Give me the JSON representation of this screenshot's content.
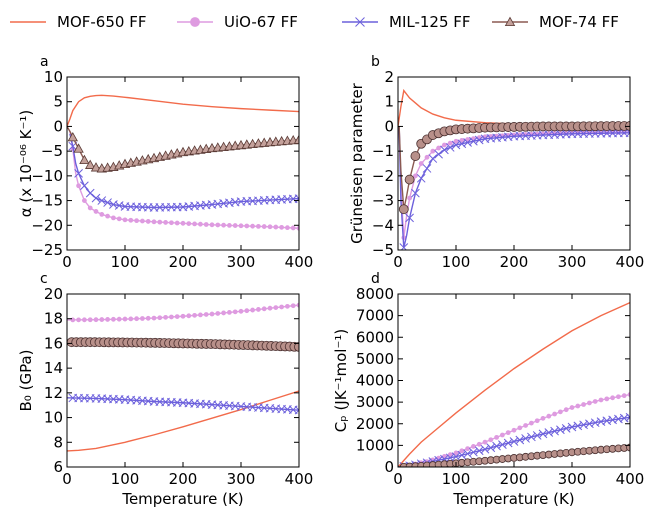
{
  "legend": [
    {
      "label": "MOF-650 FF",
      "color": "#f26b4b",
      "marker": "none"
    },
    {
      "label": "UiO-67 FF",
      "color": "#de9be0",
      "marker": "circle",
      "markerFill": "#de9be0",
      "markerStroke": "#de9be0"
    },
    {
      "label": "MIL-125 FF",
      "color": "#6c60dc",
      "marker": "x",
      "markerFill": "none",
      "markerStroke": "#6c60dc"
    },
    {
      "label": "MOF-74 FF",
      "color": "#8b5a52",
      "marker": "triangle",
      "markerFill": "#c4a19b",
      "markerStroke": "#5a3a35"
    }
  ],
  "chart_data": [
    {
      "panel": "a",
      "type": "line",
      "xlabel": "",
      "ylabel": "α (x 10⁻⁰⁶ K⁻¹)",
      "xlim": [
        0,
        400
      ],
      "ylim": [
        -25,
        10
      ],
      "xticks": [
        0,
        100,
        200,
        300,
        400
      ],
      "yticks": [
        -25,
        -20,
        -15,
        -10,
        -5,
        0,
        5,
        10
      ],
      "series": [
        {
          "name": "MOF-650 FF",
          "marker": "none",
          "x": [
            0,
            5,
            10,
            20,
            30,
            40,
            50,
            60,
            80,
            100,
            150,
            200,
            250,
            300,
            350,
            400
          ],
          "y": [
            0,
            1.5,
            3.2,
            5.0,
            5.8,
            6.1,
            6.25,
            6.3,
            6.15,
            5.9,
            5.2,
            4.5,
            4.0,
            3.6,
            3.3,
            3.0
          ]
        },
        {
          "name": "UiO-67 FF",
          "marker": "circle",
          "x": [
            5,
            10,
            15,
            20,
            30,
            40,
            50,
            60,
            80,
            100,
            150,
            200,
            250,
            300,
            350,
            400
          ],
          "y": [
            -1.0,
            -4.5,
            -9.5,
            -12.0,
            -15.0,
            -16.5,
            -17.2,
            -17.8,
            -18.5,
            -18.9,
            -19.3,
            -19.6,
            -19.9,
            -20.1,
            -20.3,
            -20.6
          ]
        },
        {
          "name": "MIL-125 FF",
          "marker": "x",
          "x": [
            5,
            10,
            15,
            20,
            30,
            40,
            50,
            60,
            80,
            100,
            150,
            200,
            250,
            300,
            350,
            400
          ],
          "y": [
            -1.5,
            -4.0,
            -7.5,
            -9.5,
            -12.0,
            -13.5,
            -14.5,
            -15.0,
            -15.8,
            -16.2,
            -16.4,
            -16.3,
            -15.8,
            -15.2,
            -14.9,
            -14.6
          ]
        },
        {
          "name": "MOF-74 FF",
          "marker": "triangle",
          "x": [
            0,
            5,
            10,
            20,
            30,
            40,
            50,
            60,
            80,
            100,
            150,
            200,
            250,
            300,
            350,
            400
          ],
          "y": [
            0,
            -1.0,
            -2.2,
            -4.5,
            -6.8,
            -7.8,
            -8.3,
            -8.5,
            -8.2,
            -7.6,
            -6.4,
            -5.2,
            -4.4,
            -3.8,
            -3.2,
            -2.7
          ]
        }
      ]
    },
    {
      "panel": "b",
      "type": "line",
      "xlabel": "",
      "ylabel": "Grüneisen parameter",
      "xlim": [
        0,
        400
      ],
      "ylim": [
        -5,
        2
      ],
      "xticks": [
        0,
        100,
        200,
        300,
        400
      ],
      "yticks": [
        -5,
        -4,
        -3,
        -2,
        -1,
        0,
        1,
        2
      ],
      "series": [
        {
          "name": "MOF-650 FF",
          "marker": "none",
          "x": [
            0,
            5,
            10,
            15,
            20,
            30,
            40,
            60,
            80,
            100,
            150,
            200,
            250,
            300,
            350,
            400
          ],
          "y": [
            0,
            0.8,
            1.45,
            1.3,
            1.15,
            0.95,
            0.75,
            0.5,
            0.35,
            0.25,
            0.15,
            0.1,
            0.07,
            0.05,
            0.03,
            0.02
          ]
        },
        {
          "name": "UiO-67 FF",
          "marker": "circle",
          "x": [
            2,
            5,
            10,
            15,
            20,
            30,
            40,
            60,
            80,
            100,
            150,
            200,
            250,
            300,
            350,
            400
          ],
          "y": [
            0,
            -2.5,
            -4.5,
            -3.6,
            -2.9,
            -2.0,
            -1.5,
            -1.0,
            -0.75,
            -0.6,
            -0.42,
            -0.35,
            -0.3,
            -0.27,
            -0.25,
            -0.23
          ]
        },
        {
          "name": "MIL-125 FF",
          "marker": "x",
          "x": [
            2,
            5,
            10,
            15,
            20,
            30,
            40,
            60,
            80,
            100,
            150,
            200,
            250,
            300,
            350,
            400
          ],
          "y": [
            0,
            -3.0,
            -4.9,
            -4.4,
            -3.7,
            -2.7,
            -2.1,
            -1.3,
            -0.95,
            -0.75,
            -0.5,
            -0.4,
            -0.35,
            -0.3,
            -0.28,
            -0.26
          ]
        },
        {
          "name": "MOF-74 FF",
          "marker": "circle",
          "x": [
            2,
            5,
            10,
            15,
            20,
            30,
            40,
            60,
            80,
            100,
            150,
            200,
            250,
            300,
            350,
            400
          ],
          "y": [
            0,
            -1.8,
            -3.35,
            -2.8,
            -2.15,
            -1.2,
            -0.7,
            -0.35,
            -0.2,
            -0.12,
            -0.05,
            -0.02,
            0,
            0,
            0.01,
            0.02
          ]
        }
      ]
    },
    {
      "panel": "c",
      "type": "line",
      "xlabel": "Temperature (K)",
      "ylabel": "B₀ (GPa)",
      "xlim": [
        0,
        400
      ],
      "ylim": [
        6,
        20
      ],
      "xticks": [
        0,
        100,
        200,
        300,
        400
      ],
      "yticks": [
        6,
        8,
        10,
        12,
        14,
        16,
        18,
        20
      ],
      "series": [
        {
          "name": "MOF-650 FF",
          "marker": "none",
          "x": [
            0,
            20,
            50,
            100,
            150,
            200,
            250,
            300,
            350,
            400
          ],
          "y": [
            7.3,
            7.35,
            7.5,
            8.0,
            8.6,
            9.25,
            9.95,
            10.65,
            11.4,
            12.15
          ]
        },
        {
          "name": "UiO-67 FF",
          "marker": "circle",
          "x": [
            0,
            50,
            100,
            150,
            200,
            250,
            300,
            350,
            400
          ],
          "y": [
            17.9,
            17.92,
            17.97,
            18.05,
            18.2,
            18.38,
            18.6,
            18.85,
            19.1
          ]
        },
        {
          "name": "MIL-125 FF",
          "marker": "x",
          "x": [
            0,
            50,
            100,
            150,
            200,
            250,
            300,
            350,
            400
          ],
          "y": [
            11.6,
            11.55,
            11.45,
            11.3,
            11.2,
            11.05,
            10.9,
            10.75,
            10.6
          ]
        },
        {
          "name": "MOF-74 FF",
          "marker": "circle",
          "x": [
            0,
            50,
            100,
            150,
            200,
            250,
            300,
            350,
            400
          ],
          "y": [
            16.1,
            16.1,
            16.08,
            16.05,
            16.0,
            15.95,
            15.88,
            15.8,
            15.72
          ]
        }
      ]
    },
    {
      "panel": "d",
      "type": "line",
      "xlabel": "Temperature (K)",
      "ylabel": "Cₚ (JK⁻¹mol⁻¹)",
      "xlim": [
        0,
        400
      ],
      "ylim": [
        0,
        8000
      ],
      "xticks": [
        0,
        100,
        200,
        300,
        400
      ],
      "yticks": [
        0,
        1000,
        2000,
        3000,
        4000,
        5000,
        6000,
        7000,
        8000
      ],
      "series": [
        {
          "name": "MOF-650 FF",
          "marker": "none",
          "x": [
            0,
            10,
            20,
            40,
            60,
            100,
            150,
            200,
            250,
            300,
            350,
            400
          ],
          "y": [
            0,
            300,
            600,
            1150,
            1600,
            2500,
            3550,
            4550,
            5450,
            6300,
            7000,
            7600
          ]
        },
        {
          "name": "UiO-67 FF",
          "marker": "circle",
          "x": [
            0,
            20,
            50,
            100,
            150,
            200,
            250,
            300,
            350,
            400
          ],
          "y": [
            0,
            80,
            250,
            650,
            1150,
            1700,
            2250,
            2750,
            3100,
            3350
          ]
        },
        {
          "name": "MIL-125 FF",
          "marker": "x",
          "x": [
            0,
            20,
            50,
            100,
            150,
            200,
            250,
            300,
            350,
            400
          ],
          "y": [
            0,
            60,
            200,
            480,
            820,
            1180,
            1530,
            1850,
            2100,
            2300
          ]
        },
        {
          "name": "MOF-74 FF",
          "marker": "circle",
          "x": [
            0,
            20,
            50,
            100,
            150,
            200,
            250,
            300,
            350,
            400
          ],
          "y": [
            0,
            20,
            70,
            170,
            290,
            420,
            550,
            680,
            800,
            900
          ]
        }
      ]
    }
  ]
}
